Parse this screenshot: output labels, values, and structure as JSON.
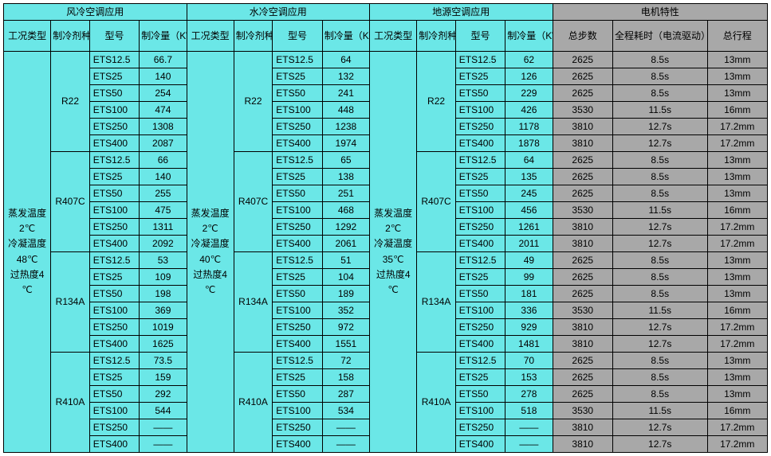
{
  "colors": {
    "main_bg": "#6be7e7",
    "motor_bg": "#a8a8a8",
    "border": "#000000",
    "text": "#000000"
  },
  "section_headers": [
    "风冷空调应用",
    "水冷空调应用",
    "地源空调应用",
    "电机特性"
  ],
  "sub_headers": {
    "condition": "工况类型",
    "refrigerant": "制冷剂种类",
    "model": "型号",
    "capacity": "制冷量（KW）",
    "motor_steps": "总步数",
    "motor_time": "全程耗时（电流驱动）",
    "motor_stroke": "总行程"
  },
  "conditions": {
    "air": "蒸发温度2℃ 冷凝温度48℃ 过热度4℃",
    "water": "蒸发温度2℃ 冷凝温度40℃ 过热度4℃",
    "ground": "蒸发温度2℃ 冷凝温度35℃ 过热度4℃"
  },
  "refrigerants": [
    "R22",
    "R407C",
    "R134A",
    "R410A"
  ],
  "models": [
    "ETS12.5",
    "ETS25",
    "ETS50",
    "ETS100",
    "ETS250",
    "ETS400"
  ],
  "capacity": {
    "air": {
      "R22": [
        "66.7",
        "140",
        "254",
        "474",
        "1308",
        "2087"
      ],
      "R407C": [
        "66",
        "140",
        "255",
        "475",
        "1311",
        "2092"
      ],
      "R134A": [
        "53",
        "109",
        "198",
        "369",
        "1019",
        "1625"
      ],
      "R410A": [
        "73.5",
        "159",
        "292",
        "544",
        "——",
        "——"
      ]
    },
    "water": {
      "R22": [
        "64",
        "132",
        "241",
        "448",
        "1238",
        "1974"
      ],
      "R407C": [
        "65",
        "138",
        "251",
        "468",
        "1292",
        "2061"
      ],
      "R134A": [
        "51",
        "104",
        "189",
        "352",
        "972",
        "1551"
      ],
      "R410A": [
        "72",
        "158",
        "287",
        "534",
        "——",
        "——"
      ]
    },
    "ground": {
      "R22": [
        "62",
        "126",
        "229",
        "426",
        "1178",
        "1878"
      ],
      "R407C": [
        "64",
        "135",
        "245",
        "456",
        "1261",
        "2011"
      ],
      "R134A": [
        "49",
        "99",
        "181",
        "336",
        "929",
        "1481"
      ],
      "R410A": [
        "70",
        "153",
        "278",
        "518",
        "——",
        "——"
      ]
    }
  },
  "motor": {
    "steps": [
      "2625",
      "2625",
      "2625",
      "3530",
      "3810",
      "3810"
    ],
    "time": [
      "8.5s",
      "8.5s",
      "8.5s",
      "11.5s",
      "12.7s",
      "12.7s"
    ],
    "stroke": [
      "13mm",
      "13mm",
      "13mm",
      "16mm",
      "17.2mm",
      "17.2mm"
    ]
  }
}
